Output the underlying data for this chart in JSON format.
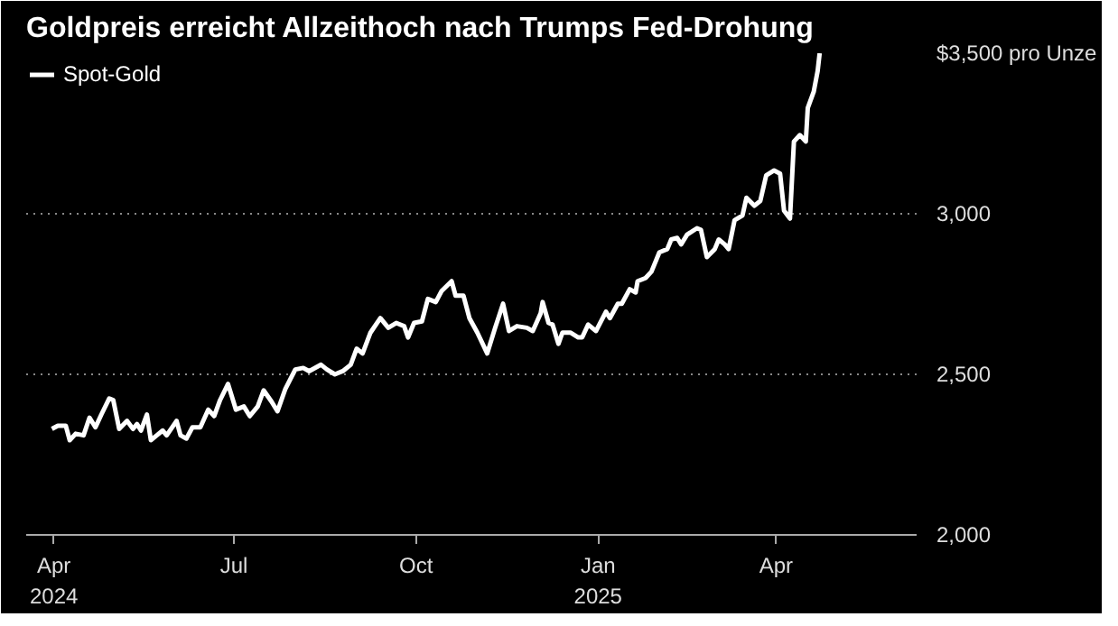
{
  "chart_data": {
    "type": "line",
    "title": "Goldpreis erreicht Allzeithoch nach Trumps Fed-Drohung",
    "x": [
      "2024-03-31",
      "2024-04-03",
      "2024-04-07",
      "2024-04-09",
      "2024-04-12",
      "2024-04-16",
      "2024-04-19",
      "2024-04-22",
      "2024-04-25",
      "2024-04-29",
      "2024-05-01",
      "2024-05-04",
      "2024-05-08",
      "2024-05-11",
      "2024-05-13",
      "2024-05-15",
      "2024-05-18",
      "2024-05-20",
      "2024-05-23",
      "2024-05-26",
      "2024-05-28",
      "2024-06-02",
      "2024-06-04",
      "2024-06-07",
      "2024-06-10",
      "2024-06-14",
      "2024-06-18",
      "2024-06-21",
      "2024-06-24",
      "2024-06-28",
      "2024-07-02",
      "2024-07-06",
      "2024-07-09",
      "2024-07-13",
      "2024-07-16",
      "2024-07-20",
      "2024-07-23",
      "2024-07-27",
      "2024-08-01",
      "2024-08-05",
      "2024-08-08",
      "2024-08-14",
      "2024-08-17",
      "2024-08-21",
      "2024-08-25",
      "2024-08-29",
      "2024-09-01",
      "2024-09-04",
      "2024-09-08",
      "2024-09-13",
      "2024-09-17",
      "2024-09-21",
      "2024-09-25",
      "2024-09-27",
      "2024-09-30",
      "2024-10-04",
      "2024-10-07",
      "2024-10-11",
      "2024-10-14",
      "2024-10-19",
      "2024-10-21",
      "2024-10-25",
      "2024-10-28",
      "2024-11-01",
      "2024-11-06",
      "2024-11-10",
      "2024-11-14",
      "2024-11-17",
      "2024-11-21",
      "2024-11-26",
      "2024-11-29",
      "2024-12-03",
      "2024-12-04",
      "2024-12-07",
      "2024-12-09",
      "2024-12-12",
      "2024-12-14",
      "2024-12-18",
      "2024-12-22",
      "2024-12-24",
      "2024-12-27",
      "2024-12-31",
      "2025-01-05",
      "2025-01-07",
      "2025-01-11",
      "2025-01-13",
      "2025-01-17",
      "2025-01-20",
      "2025-01-21",
      "2025-01-25",
      "2025-01-28",
      "2025-02-01",
      "2025-02-05",
      "2025-02-07",
      "2025-02-10",
      "2025-02-12",
      "2025-02-15",
      "2025-02-20",
      "2025-02-22",
      "2025-02-25",
      "2025-03-01",
      "2025-03-03",
      "2025-03-06",
      "2025-03-08",
      "2025-03-11",
      "2025-03-15",
      "2025-03-17",
      "2025-03-21",
      "2025-03-24",
      "2025-03-27",
      "2025-03-31",
      "2025-04-03",
      "2025-04-05",
      "2025-04-08",
      "2025-04-10",
      "2025-04-13",
      "2025-04-16",
      "2025-04-17",
      "2025-04-20",
      "2025-04-22",
      "2025-04-23"
    ],
    "series": [
      {
        "name": "Spot-Gold",
        "color": "#ffffff",
        "values": [
          2330,
          2340,
          2340,
          2295,
          2315,
          2310,
          2365,
          2335,
          2375,
          2425,
          2420,
          2330,
          2355,
          2330,
          2345,
          2325,
          2375,
          2295,
          2310,
          2325,
          2310,
          2355,
          2310,
          2300,
          2335,
          2335,
          2390,
          2370,
          2420,
          2470,
          2390,
          2400,
          2370,
          2400,
          2450,
          2415,
          2385,
          2455,
          2515,
          2520,
          2510,
          2530,
          2515,
          2500,
          2510,
          2530,
          2580,
          2565,
          2630,
          2675,
          2645,
          2660,
          2650,
          2615,
          2660,
          2665,
          2735,
          2725,
          2760,
          2790,
          2745,
          2745,
          2675,
          2630,
          2565,
          2645,
          2720,
          2635,
          2650,
          2645,
          2635,
          2690,
          2725,
          2660,
          2655,
          2595,
          2630,
          2630,
          2615,
          2615,
          2655,
          2635,
          2695,
          2675,
          2720,
          2720,
          2765,
          2755,
          2790,
          2800,
          2820,
          2880,
          2890,
          2920,
          2925,
          2905,
          2935,
          2955,
          2950,
          2865,
          2890,
          2920,
          2905,
          2890,
          2980,
          2995,
          3050,
          3025,
          3040,
          3120,
          3135,
          3125,
          3010,
          2985,
          3225,
          3245,
          3225,
          3330,
          3380,
          3445,
          3500
        ]
      }
    ],
    "xlim": [
      "2024-03-18",
      "2025-06-11"
    ],
    "xticks": [
      {
        "value": "2024-04-01",
        "label": "Apr\n2024"
      },
      {
        "value": "2024-07-01",
        "label": "Jul"
      },
      {
        "value": "2024-10-01",
        "label": "Oct"
      },
      {
        "value": "2025-01-01",
        "label": "Jan\n2025"
      },
      {
        "value": "2025-04-01",
        "label": "Apr"
      }
    ],
    "ylim": [
      2000,
      3500
    ],
    "yticks": [
      {
        "value": 2000,
        "label": "2,000"
      },
      {
        "value": 2500,
        "label": "2,500"
      },
      {
        "value": 3000,
        "label": "3,000"
      },
      {
        "value": 3500,
        "label": "$3,500 pro Unze"
      }
    ],
    "grid": "y",
    "legend": "top left",
    "line_style": "solid",
    "marker": "none"
  }
}
